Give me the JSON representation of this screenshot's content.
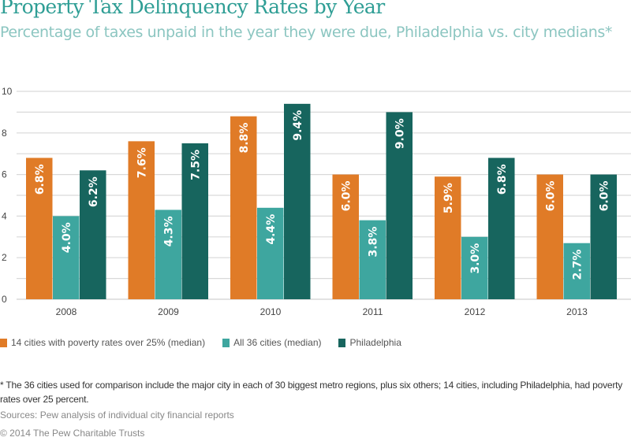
{
  "chart_data": {
    "type": "bar",
    "title": "Property Tax Delinquency Rates by Year",
    "subtitle": "Percentage of taxes unpaid in the year they were due, Philadelphia vs. city medians*",
    "xlabel": "",
    "ylabel": "",
    "ylim": [
      0,
      10
    ],
    "yticks": [
      0,
      2,
      4,
      6,
      8,
      10
    ],
    "grid": true,
    "legend_position": "bottom-left",
    "categories": [
      "2008",
      "2009",
      "2010",
      "2011",
      "2012",
      "2013"
    ],
    "series": [
      {
        "name": "14 cities with poverty rates over 25% (median)",
        "color": "#e07b27",
        "values": [
          6.8,
          7.6,
          8.8,
          6.0,
          5.9,
          6.0
        ],
        "labels": [
          "6.8%",
          "7.6%",
          "8.8%",
          "6.0%",
          "5.9%",
          "6.0%"
        ]
      },
      {
        "name": "All 36 cities (median)",
        "color": "#3ea69f",
        "values": [
          4.0,
          4.3,
          4.4,
          3.8,
          3.0,
          2.7
        ],
        "labels": [
          "4.0%",
          "4.3%",
          "4.4%",
          "3.8%",
          "3.0%",
          "2.7%"
        ]
      },
      {
        "name": "Philadelphia",
        "color": "#17655e",
        "values": [
          6.2,
          7.5,
          9.4,
          9.0,
          6.8,
          6.0
        ],
        "labels": [
          "6.2%",
          "7.5%",
          "9.4%",
          "9.0%",
          "6.8%",
          "6.0%"
        ]
      }
    ]
  },
  "footnote": "* The 36 cities used for comparison include the major city in each of 30 biggest metro regions, plus six others; 14 cities, including Philadelphia, had poverty rates over 25 percent.",
  "source": "Sources: Pew analysis of individual city financial reports",
  "copyright": "© 2014 The Pew Charitable Trusts",
  "colors": {
    "title": "#2f9e95",
    "subtitle": "#8cc6c1",
    "grid": "#d9d9d9"
  }
}
